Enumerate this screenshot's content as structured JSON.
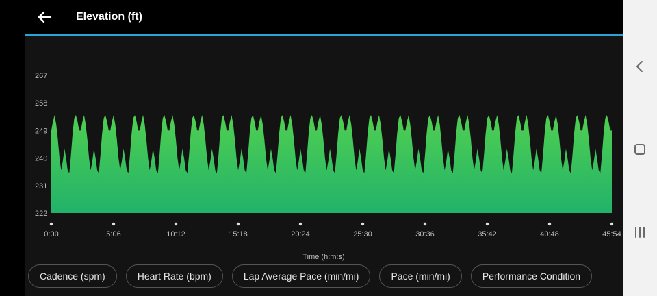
{
  "header": {
    "title": "Elevation (ft)",
    "back_icon": "arrow-left-icon"
  },
  "colors": {
    "accent_line": "#29a3d8",
    "fill_top": "#4fcf50",
    "fill_bottom": "#22b26b",
    "panel_bg": "#131313"
  },
  "chart_data": {
    "type": "area",
    "title": "Elevation (ft)",
    "xlabel": "Time (h:m:s)",
    "ylabel": "",
    "yticks": [
      "267",
      "258",
      "249",
      "240",
      "231",
      "222"
    ],
    "ylim": [
      222,
      267
    ],
    "xticks": [
      "0:00",
      "5:06",
      "10:12",
      "15:18",
      "20:24",
      "25:30",
      "30:36",
      "35:42",
      "40:48",
      "45:54"
    ],
    "xlim_seconds": [
      0,
      2754
    ],
    "pattern": "repeating cycle, about 19 oscillations",
    "cycle_profile_ft": [
      249,
      252,
      254,
      251,
      246,
      240,
      236,
      239,
      243,
      240,
      236,
      235,
      241,
      248,
      253,
      254,
      252,
      249
    ],
    "min_ft": 235,
    "max_ft": 254
  },
  "metric_chips": [
    "Cadence (spm)",
    "Heart Rate (bpm)",
    "Lap Average Pace (min/mi)",
    "Pace (min/mi)",
    "Performance Condition"
  ],
  "system_nav": {
    "back": "chevron-left-icon",
    "home": "home-square-icon",
    "recents": "recents-lines-icon"
  }
}
